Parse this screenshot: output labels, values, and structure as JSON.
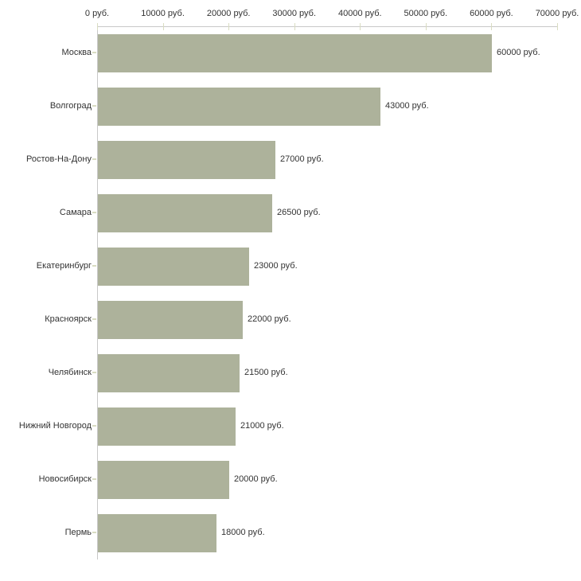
{
  "chart_data": {
    "type": "bar",
    "orientation": "horizontal",
    "title": "",
    "categories": [
      "Москва",
      "Волгоград",
      "Ростов-На-Дону",
      "Самара",
      "Екатеринбург",
      "Красноярск",
      "Челябинск",
      "Нижний Новгород",
      "Новосибирск",
      "Пермь"
    ],
    "values": [
      60000,
      43000,
      27000,
      26500,
      23000,
      22000,
      21500,
      21000,
      20000,
      18000
    ],
    "value_labels": [
      "60000 руб.",
      "43000 руб.",
      "27000 руб.",
      "26500 руб.",
      "23000 руб.",
      "22000 руб.",
      "21500 руб.",
      "21000 руб.",
      "20000 руб.",
      "18000 руб."
    ],
    "x_ticks": [
      0,
      10000,
      20000,
      30000,
      40000,
      50000,
      60000,
      70000
    ],
    "x_tick_labels": [
      "0 руб.",
      "10000 руб.",
      "20000 руб.",
      "30000 руб.",
      "40000 руб.",
      "50000 руб.",
      "60000 руб.",
      "70000 руб."
    ],
    "xlim": [
      0,
      70000
    ],
    "grid": false,
    "legend": "none",
    "colors": {
      "bar": "#adb29b",
      "axis_line": "#c8c8c8",
      "tick_mark": "#d9dcc2",
      "text": "#333333",
      "background": "#ffffff"
    }
  }
}
